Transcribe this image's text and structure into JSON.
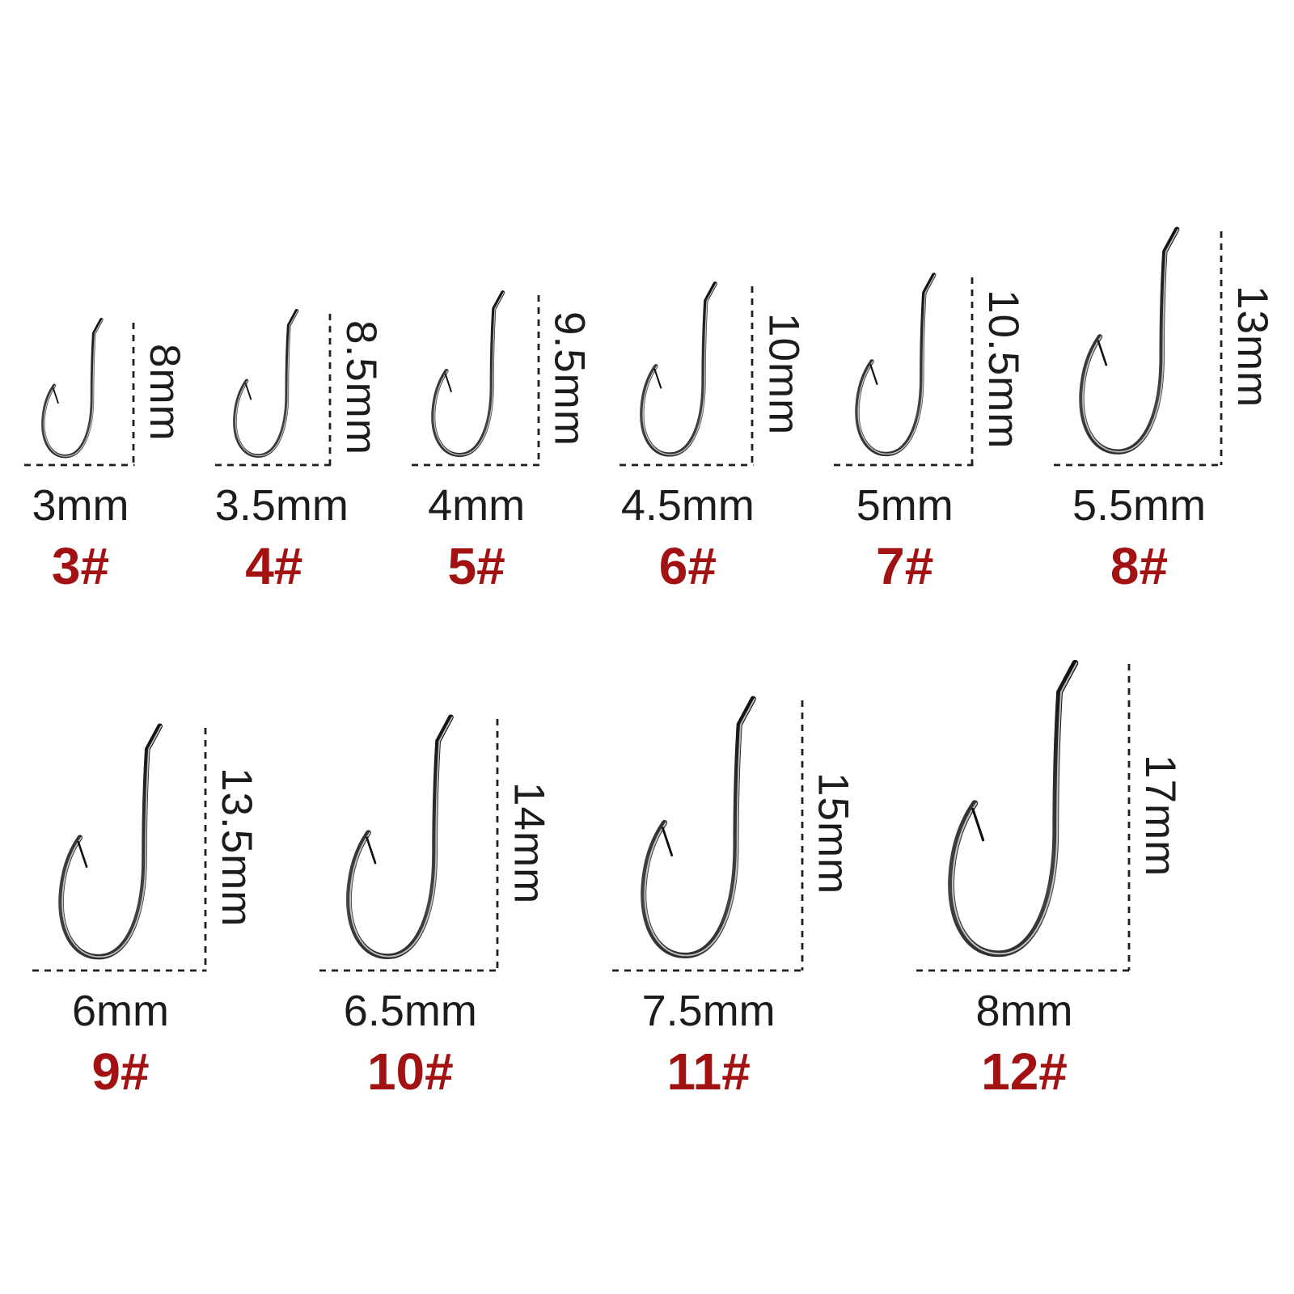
{
  "figure": {
    "description": "Fishing hook size chart with dimension lines",
    "rows": [
      {
        "id": "top",
        "hook_numbers": [
          "3#",
          "4#",
          "5#",
          "6#",
          "7#",
          "8#"
        ]
      },
      {
        "id": "bottom",
        "hook_numbers": [
          "9#",
          "10#",
          "11#",
          "12#"
        ]
      }
    ]
  },
  "hooks": [
    {
      "number_label": "3#",
      "gap_label": "3mm",
      "length_label": "8mm",
      "gap_mm": 3,
      "length_mm": 8,
      "row": "top"
    },
    {
      "number_label": "4#",
      "gap_label": "3.5mm",
      "length_label": "8.5mm",
      "gap_mm": 3.5,
      "length_mm": 8.5,
      "row": "top"
    },
    {
      "number_label": "5#",
      "gap_label": "4mm",
      "length_label": "9.5mm",
      "gap_mm": 4,
      "length_mm": 9.5,
      "row": "top"
    },
    {
      "number_label": "6#",
      "gap_label": "4.5mm",
      "length_label": "10mm",
      "gap_mm": 4.5,
      "length_mm": 10,
      "row": "top"
    },
    {
      "number_label": "7#",
      "gap_label": "5mm",
      "length_label": "10.5mm",
      "gap_mm": 5,
      "length_mm": 10.5,
      "row": "top"
    },
    {
      "number_label": "8#",
      "gap_label": "5.5mm",
      "length_label": "13mm",
      "gap_mm": 5.5,
      "length_mm": 13,
      "row": "top"
    },
    {
      "number_label": "9#",
      "gap_label": "6mm",
      "length_label": "13.5mm",
      "gap_mm": 6,
      "length_mm": 13.5,
      "row": "bottom"
    },
    {
      "number_label": "10#",
      "gap_label": "6.5mm",
      "length_label": "14mm",
      "gap_mm": 6.5,
      "length_mm": 14,
      "row": "bottom"
    },
    {
      "number_label": "11#",
      "gap_label": "7.5mm",
      "length_label": "15mm",
      "gap_mm": 7.5,
      "length_mm": 15,
      "row": "bottom"
    },
    {
      "number_label": "12#",
      "gap_label": "8mm",
      "length_label": "17mm",
      "gap_mm": 8,
      "length_mm": 17,
      "row": "bottom"
    }
  ],
  "colors": {
    "background": "#ffffff",
    "measurement_text": "#1c1c1c",
    "number_text": "#a31212",
    "dimension_line": "#1f1f1f",
    "hook_dark": "#111111",
    "hook_mid": "#2f2f2f",
    "hook_tail": "#454545",
    "hook_sheen": "#d9d9d9"
  }
}
